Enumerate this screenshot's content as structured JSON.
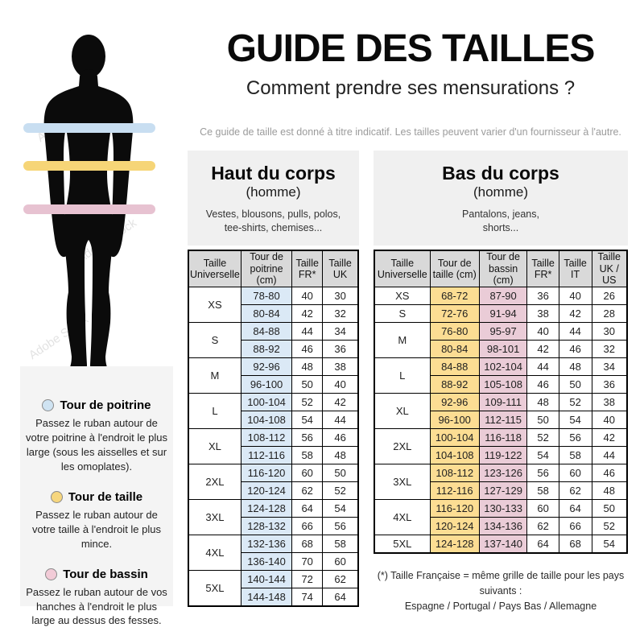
{
  "page": {
    "title": "GUIDE DES TAILLES",
    "subtitle": "Comment prendre ses mensurations ?",
    "disclaimer": "Ce guide de taille est donné à titre indicatif. Les tailles peuvent varier d'un fournisseur à l'autre."
  },
  "figure": {
    "watermark": "Adobe Stock",
    "bands": [
      {
        "name": "chest-band",
        "color": "#c8def1"
      },
      {
        "name": "waist-band",
        "color": "#f6d577"
      },
      {
        "name": "hip-band",
        "color": "#e7c2d1"
      }
    ]
  },
  "legend": {
    "items": [
      {
        "title": "Tour de poitrine",
        "color": "#cfe3f2",
        "text": "Passez le ruban autour de votre poitrine à l'endroit le plus large (sous les aisselles et sur les omoplates)."
      },
      {
        "title": "Tour de taille",
        "color": "#f6d67e",
        "text": "Passez le ruban autour de votre taille à l'endroit le plus mince."
      },
      {
        "title": "Tour de bassin",
        "color": "#f2cbd7",
        "text": "Passez le ruban autour de vos hanches à l'endroit le plus large au dessus des fesses."
      }
    ]
  },
  "upper_table": {
    "title": "Haut du corps",
    "subtitle": "(homme)",
    "description": "Vestes, blousons, pulls, polos,\ntee-shirts, chemises...",
    "headers": [
      "Taille Universelle",
      "Tour de poitrine (cm)",
      "Taille FR*",
      "Taille UK"
    ],
    "groups": [
      {
        "size": "XS",
        "rows": [
          [
            "78-80",
            "40",
            "30"
          ],
          [
            "80-84",
            "42",
            "32"
          ]
        ]
      },
      {
        "size": "S",
        "rows": [
          [
            "84-88",
            "44",
            "34"
          ],
          [
            "88-92",
            "46",
            "36"
          ]
        ]
      },
      {
        "size": "M",
        "rows": [
          [
            "92-96",
            "48",
            "38"
          ],
          [
            "96-100",
            "50",
            "40"
          ]
        ]
      },
      {
        "size": "L",
        "rows": [
          [
            "100-104",
            "52",
            "42"
          ],
          [
            "104-108",
            "54",
            "44"
          ]
        ]
      },
      {
        "size": "XL",
        "rows": [
          [
            "108-112",
            "56",
            "46"
          ],
          [
            "112-116",
            "58",
            "48"
          ]
        ]
      },
      {
        "size": "2XL",
        "rows": [
          [
            "116-120",
            "60",
            "50"
          ],
          [
            "120-124",
            "62",
            "52"
          ]
        ]
      },
      {
        "size": "3XL",
        "rows": [
          [
            "124-128",
            "64",
            "54"
          ],
          [
            "128-132",
            "66",
            "56"
          ]
        ]
      },
      {
        "size": "4XL",
        "rows": [
          [
            "132-136",
            "68",
            "58"
          ],
          [
            "136-140",
            "70",
            "60"
          ]
        ]
      },
      {
        "size": "5XL",
        "rows": [
          [
            "140-144",
            "72",
            "62"
          ],
          [
            "144-148",
            "74",
            "64"
          ]
        ]
      }
    ]
  },
  "lower_table": {
    "title": "Bas du corps",
    "subtitle": "(homme)",
    "description": "Pantalons, jeans,\nshorts...",
    "headers": [
      "Taille Universelle",
      "Tour de taille (cm)",
      "Tour de bassin (cm)",
      "Taille FR*",
      "Taille IT",
      "Taille UK / US"
    ],
    "groups": [
      {
        "size": "XS",
        "rows": [
          [
            "68-72",
            "87-90",
            "36",
            "40",
            "26"
          ]
        ]
      },
      {
        "size": "S",
        "rows": [
          [
            "72-76",
            "91-94",
            "38",
            "42",
            "28"
          ]
        ]
      },
      {
        "size": "M",
        "rows": [
          [
            "76-80",
            "95-97",
            "40",
            "44",
            "30"
          ],
          [
            "80-84",
            "98-101",
            "42",
            "46",
            "32"
          ]
        ]
      },
      {
        "size": "L",
        "rows": [
          [
            "84-88",
            "102-104",
            "44",
            "48",
            "34"
          ],
          [
            "88-92",
            "105-108",
            "46",
            "50",
            "36"
          ]
        ]
      },
      {
        "size": "XL",
        "rows": [
          [
            "92-96",
            "109-111",
            "48",
            "52",
            "38"
          ],
          [
            "96-100",
            "112-115",
            "50",
            "54",
            "40"
          ]
        ]
      },
      {
        "size": "2XL",
        "rows": [
          [
            "100-104",
            "116-118",
            "52",
            "56",
            "42"
          ],
          [
            "104-108",
            "119-122",
            "54",
            "58",
            "44"
          ]
        ]
      },
      {
        "size": "3XL",
        "rows": [
          [
            "108-112",
            "123-126",
            "56",
            "60",
            "46"
          ],
          [
            "112-116",
            "127-129",
            "58",
            "62",
            "48"
          ]
        ]
      },
      {
        "size": "4XL",
        "rows": [
          [
            "116-120",
            "130-133",
            "60",
            "64",
            "50"
          ],
          [
            "120-124",
            "134-136",
            "62",
            "66",
            "52"
          ]
        ]
      },
      {
        "size": "5XL",
        "rows": [
          [
            "124-128",
            "137-140",
            "64",
            "68",
            "54"
          ]
        ]
      }
    ]
  },
  "footnote": {
    "line1": "(*) Taille Française = même grille de taille pour les pays suivants :",
    "line2": "Espagne / Portugal / Pays Bas / Allemagne"
  },
  "colors": {
    "cell_blue": "#dbe9f6",
    "cell_yellow": "#fcdd93",
    "cell_pink": "#eaccd7",
    "header_gray": "#d9d9d9",
    "panel_gray": "#f0f0f0"
  }
}
